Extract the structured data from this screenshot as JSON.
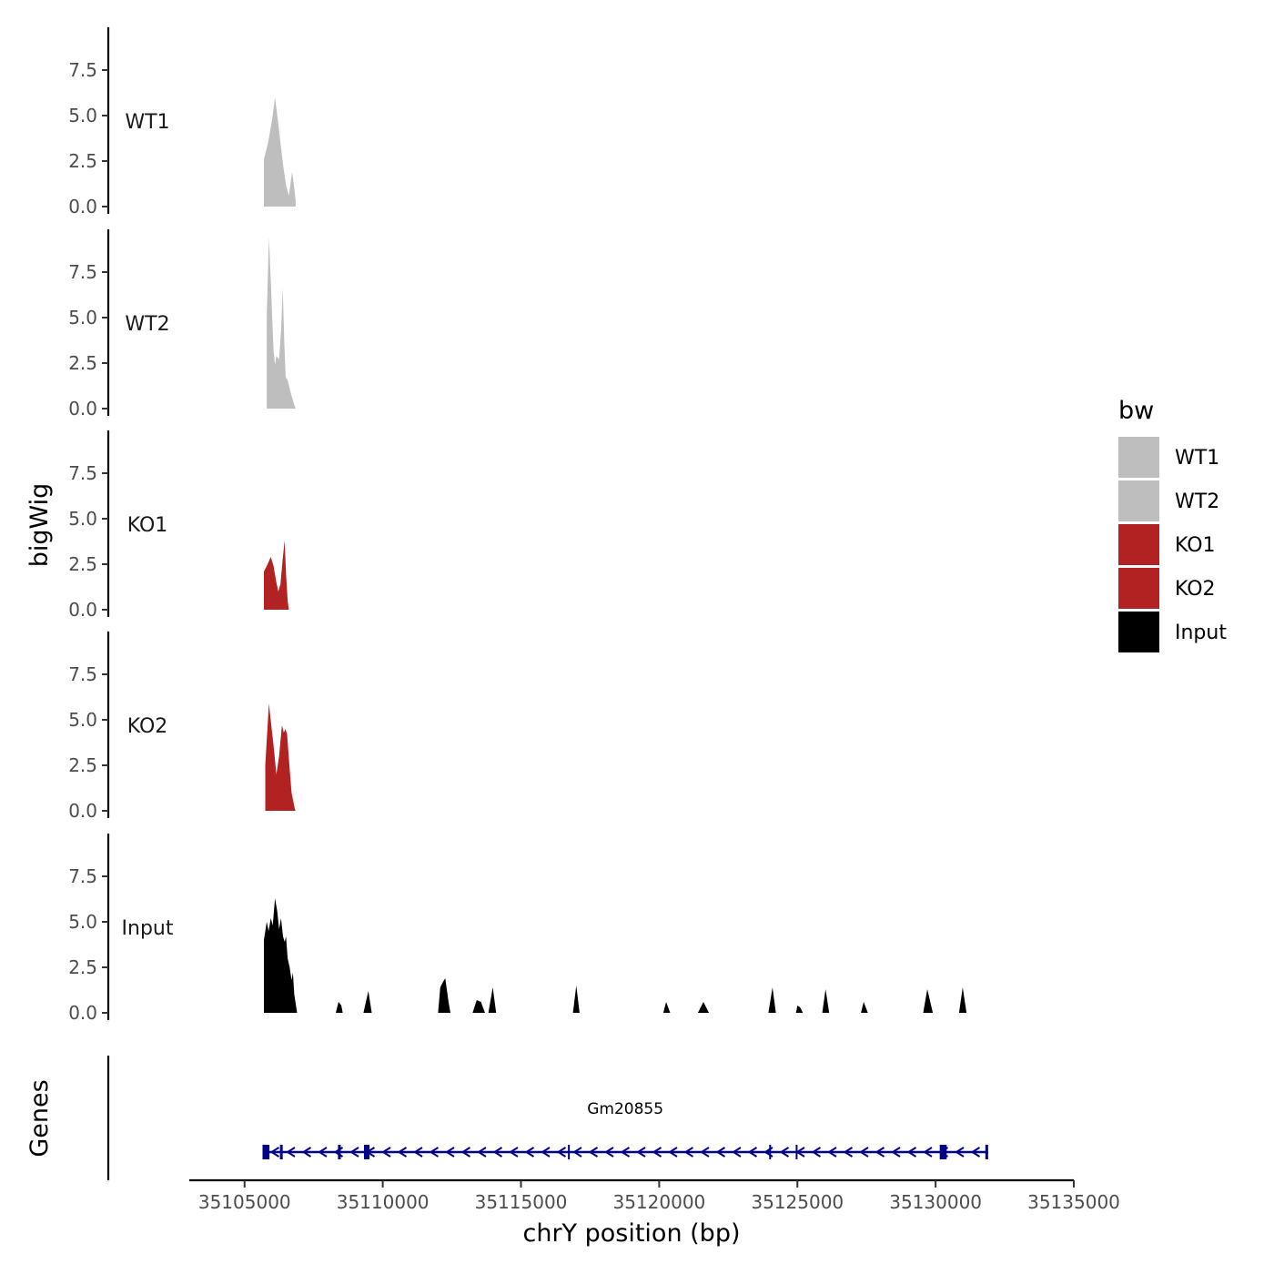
{
  "chart_data": {
    "type": "area",
    "title": "",
    "xlabel": "chrY position (bp)",
    "ylabel": "bigWig",
    "genes_label": "Genes",
    "xlim": [
      35103000,
      35135000
    ],
    "x_ticks": [
      35105000,
      35110000,
      35115000,
      35120000,
      35125000,
      35130000,
      35135000
    ],
    "x_tick_labels": [
      "35105000",
      "35110000",
      "35115000",
      "35120000",
      "35125000",
      "35130000",
      "35135000"
    ],
    "ylim": [
      0,
      10
    ],
    "y_ticks": [
      0,
      2.5,
      5,
      7.5
    ],
    "y_tick_labels": [
      "0.0",
      "2.5",
      "5.0",
      "7.5"
    ],
    "grid": false,
    "legend": {
      "title": "bw",
      "position": "right",
      "entries": [
        {
          "label": "WT1",
          "color": "#bebebe"
        },
        {
          "label": "WT2",
          "color": "#bebebe"
        },
        {
          "label": "KO1",
          "color": "#b22222"
        },
        {
          "label": "KO2",
          "color": "#b22222"
        },
        {
          "label": "Input",
          "color": "#000000"
        }
      ]
    },
    "tracks": [
      {
        "name": "WT1",
        "color": "#bebebe",
        "points": [
          [
            35105700,
            0
          ],
          [
            35105700,
            2.6
          ],
          [
            35105850,
            3.5
          ],
          [
            35106000,
            4.8
          ],
          [
            35106100,
            6.0
          ],
          [
            35106200,
            4.8
          ],
          [
            35106300,
            3.5
          ],
          [
            35106400,
            2.2
          ],
          [
            35106500,
            1.2
          ],
          [
            35106600,
            0.6
          ],
          [
            35106720,
            1.9
          ],
          [
            35106800,
            1.0
          ],
          [
            35106850,
            0.3
          ],
          [
            35106850,
            0
          ]
        ]
      },
      {
        "name": "WT2",
        "color": "#bebebe",
        "points": [
          [
            35105800,
            0
          ],
          [
            35105800,
            5.0
          ],
          [
            35105880,
            9.4
          ],
          [
            35105950,
            7.0
          ],
          [
            35106000,
            5.0
          ],
          [
            35106050,
            3.2
          ],
          [
            35106100,
            2.4
          ],
          [
            35106150,
            2.9
          ],
          [
            35106250,
            2.7
          ],
          [
            35106330,
            4.5
          ],
          [
            35106380,
            6.6
          ],
          [
            35106440,
            3.5
          ],
          [
            35106490,
            1.7
          ],
          [
            35106550,
            1.6
          ],
          [
            35106700,
            0.7
          ],
          [
            35106800,
            0.2
          ],
          [
            35106850,
            0
          ]
        ]
      },
      {
        "name": "KO1",
        "color": "#b22222",
        "points": [
          [
            35105700,
            0
          ],
          [
            35105700,
            2.1
          ],
          [
            35105800,
            2.4
          ],
          [
            35105950,
            2.9
          ],
          [
            35106050,
            2.4
          ],
          [
            35106150,
            1.5
          ],
          [
            35106220,
            1.0
          ],
          [
            35106300,
            1.4
          ],
          [
            35106380,
            2.8
          ],
          [
            35106450,
            3.8
          ],
          [
            35106500,
            2.0
          ],
          [
            35106560,
            0.5
          ],
          [
            35106600,
            0
          ]
        ]
      },
      {
        "name": "KO2",
        "color": "#b22222",
        "points": [
          [
            35105750,
            0
          ],
          [
            35105750,
            2.5
          ],
          [
            35105880,
            5.9
          ],
          [
            35105960,
            4.8
          ],
          [
            35106050,
            3.6
          ],
          [
            35106150,
            2.0
          ],
          [
            35106250,
            3.0
          ],
          [
            35106350,
            4.7
          ],
          [
            35106420,
            4.3
          ],
          [
            35106480,
            4.5
          ],
          [
            35106540,
            4.2
          ],
          [
            35106620,
            2.5
          ],
          [
            35106700,
            1.0
          ],
          [
            35106820,
            0.1
          ],
          [
            35106850,
            0
          ]
        ]
      },
      {
        "name": "Input",
        "color": "#000000",
        "points": [
          [
            35105700,
            0
          ],
          [
            35105700,
            4.0
          ],
          [
            35105800,
            5.0
          ],
          [
            35105870,
            4.5
          ],
          [
            35105950,
            5.2
          ],
          [
            35106020,
            4.8
          ],
          [
            35106100,
            6.3
          ],
          [
            35106180,
            5.6
          ],
          [
            35106250,
            4.6
          ],
          [
            35106320,
            5.2
          ],
          [
            35106390,
            4.2
          ],
          [
            35106450,
            3.9
          ],
          [
            35106500,
            4.2
          ],
          [
            35106560,
            3.0
          ],
          [
            35106630,
            2.5
          ],
          [
            35106700,
            1.8
          ],
          [
            35106750,
            2.2
          ],
          [
            35106800,
            1.0
          ],
          [
            35106900,
            0
          ],
          [
            35108300,
            0
          ],
          [
            35108400,
            0.6
          ],
          [
            35108500,
            0.4
          ],
          [
            35108550,
            0
          ],
          [
            35109300,
            0
          ],
          [
            35109480,
            1.2
          ],
          [
            35109600,
            0
          ],
          [
            35112000,
            0
          ],
          [
            35112080,
            1.4
          ],
          [
            35112180,
            1.7
          ],
          [
            35112260,
            1.9
          ],
          [
            35112380,
            0.6
          ],
          [
            35112450,
            0
          ],
          [
            35113250,
            0
          ],
          [
            35113400,
            0.7
          ],
          [
            35113550,
            0.6
          ],
          [
            35113700,
            0
          ],
          [
            35113820,
            0
          ],
          [
            35113980,
            1.4
          ],
          [
            35114100,
            0
          ],
          [
            35116880,
            0
          ],
          [
            35117000,
            1.5
          ],
          [
            35117120,
            0
          ],
          [
            35120150,
            0
          ],
          [
            35120250,
            0.6
          ],
          [
            35120400,
            0
          ],
          [
            35121400,
            0
          ],
          [
            35121600,
            0.6
          ],
          [
            35121800,
            0
          ],
          [
            35123950,
            0
          ],
          [
            35124100,
            1.4
          ],
          [
            35124220,
            0
          ],
          [
            35124950,
            0
          ],
          [
            35125000,
            0.4
          ],
          [
            35125100,
            0.3
          ],
          [
            35125200,
            0
          ],
          [
            35125900,
            0
          ],
          [
            35126020,
            1.3
          ],
          [
            35126150,
            0
          ],
          [
            35127300,
            0
          ],
          [
            35127400,
            0.6
          ],
          [
            35127550,
            0
          ],
          [
            35129550,
            0
          ],
          [
            35129700,
            1.3
          ],
          [
            35129900,
            0
          ],
          [
            35130850,
            0
          ],
          [
            35130980,
            1.4
          ],
          [
            35131120,
            0
          ]
        ]
      }
    ],
    "genes": [
      {
        "name": "Gm20855",
        "start": 35105650,
        "end": 35131900,
        "strand": "-",
        "color": "#00008b",
        "exons": [
          [
            35105650,
            35105900
          ],
          [
            35106280,
            35106380
          ],
          [
            35108380,
            35108480
          ],
          [
            35109320,
            35109520
          ],
          [
            35116700,
            35116760
          ],
          [
            35123980,
            35124040
          ],
          [
            35124940,
            35125000
          ],
          [
            35130150,
            35130400
          ],
          [
            35131800,
            35131900
          ]
        ]
      }
    ]
  }
}
